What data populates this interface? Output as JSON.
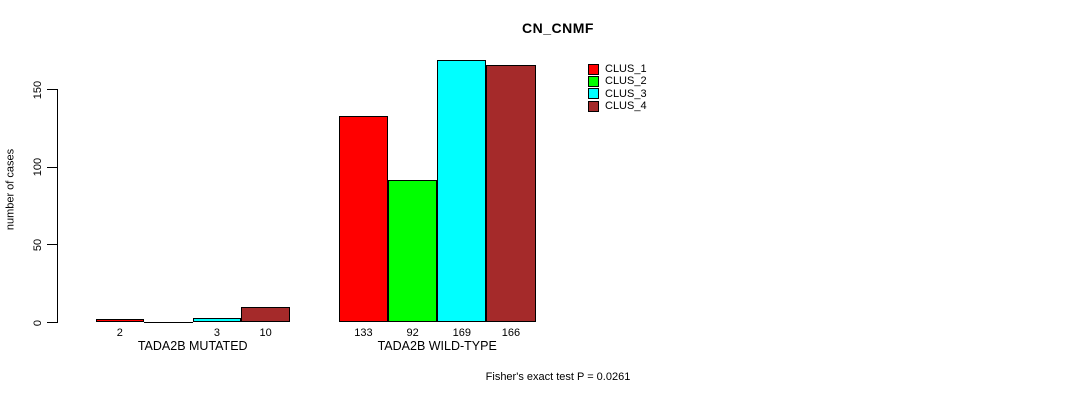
{
  "chart_data": {
    "type": "bar",
    "title": "CN_CNMF",
    "xlabel": "",
    "ylabel": "number of cases",
    "ylim": [
      0,
      150
    ],
    "y_ticks": [
      0,
      50,
      100,
      150
    ],
    "grid": false,
    "legend_position": "top-right",
    "categories": [
      "TADA2B MUTATED",
      "TADA2B WILD-TYPE"
    ],
    "series": [
      {
        "name": "CLUS_1",
        "color": "#ff0000",
        "values": [
          2,
          133
        ]
      },
      {
        "name": "CLUS_2",
        "color": "#00ff00",
        "values": [
          0,
          92
        ]
      },
      {
        "name": "CLUS_3",
        "color": "#00ffff",
        "values": [
          3,
          169
        ]
      },
      {
        "name": "CLUS_4",
        "color": "#a52a2a",
        "values": [
          10,
          166
        ]
      }
    ],
    "bar_labels": [
      [
        "2",
        "",
        "3",
        "10"
      ],
      [
        "133",
        "92",
        "169",
        "166"
      ]
    ],
    "annotation": "Fisher's exact test P = 0.0261",
    "axis_color": "#000000",
    "text_color": "#000000",
    "background_color": "#ffffff"
  }
}
